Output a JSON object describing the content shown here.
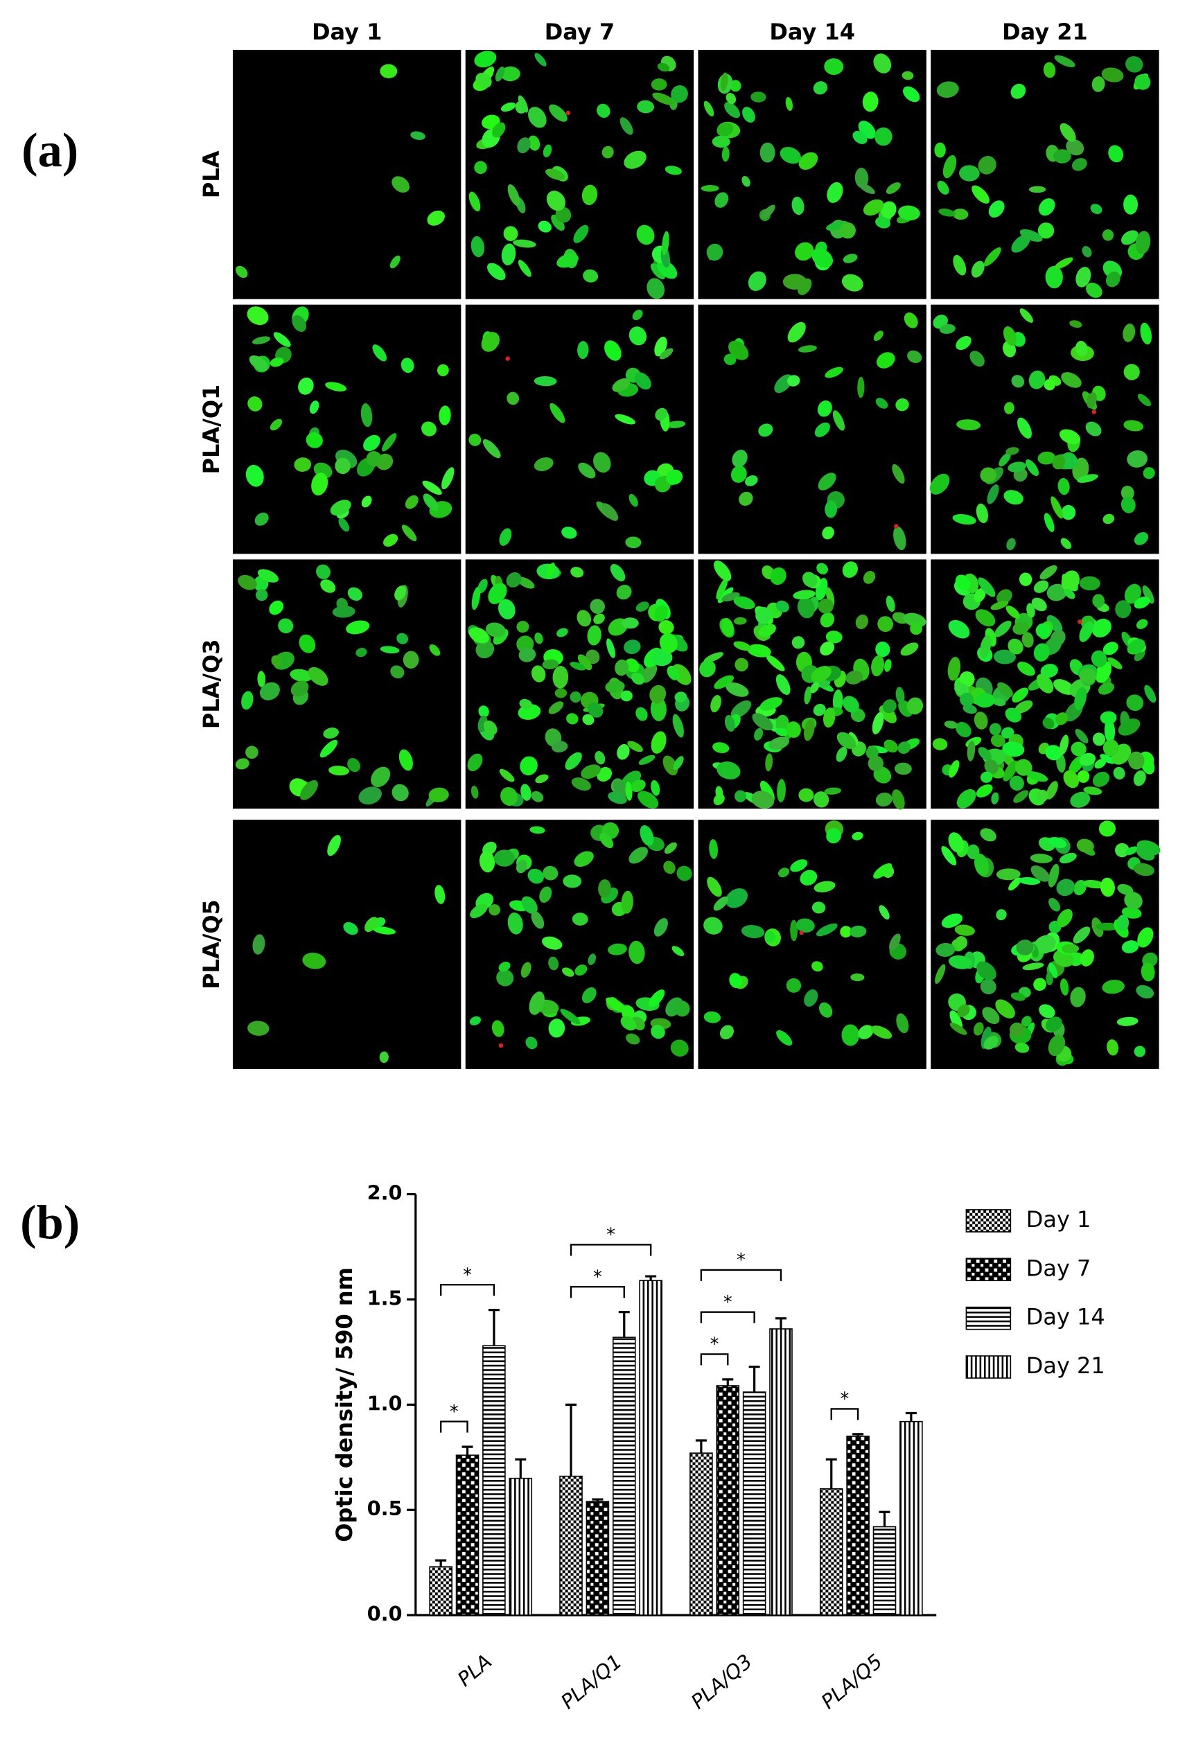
{
  "panel_a": {
    "label": "(a)",
    "columns": [
      "Day 1",
      "Day 7",
      "Day 14",
      "Day 21"
    ],
    "rows": [
      "PLA",
      "PLA/Q1",
      "PLA/Q3",
      "PLA/Q5"
    ]
  },
  "panel_b": {
    "label": "(b)"
  },
  "chart_data": {
    "type": "bar",
    "ylabel": "Optic density/ 590 nm",
    "categories": [
      "PLA",
      "PLA/Q1",
      "PLA/Q3",
      "PLA/Q5"
    ],
    "series": [
      {
        "name": "Day 1",
        "color": "#000000",
        "pattern": "checker-small",
        "values": [
          0.23,
          0.66,
          0.77,
          0.6
        ],
        "errors": [
          0.03,
          0.34,
          0.06,
          0.14
        ]
      },
      {
        "name": "Day 7",
        "color": "#000000",
        "pattern": "checker-large",
        "values": [
          0.76,
          0.54,
          1.09,
          0.85
        ],
        "errors": [
          0.04,
          0.01,
          0.03,
          0.01
        ]
      },
      {
        "name": "Day 14",
        "color": "#000000",
        "pattern": "horizontal",
        "values": [
          1.28,
          1.32,
          1.06,
          0.42
        ],
        "errors": [
          0.17,
          0.12,
          0.12,
          0.07
        ]
      },
      {
        "name": "Day 21",
        "color": "#000000",
        "pattern": "vertical",
        "values": [
          0.65,
          1.59,
          1.36,
          0.92
        ],
        "errors": [
          0.09,
          0.02,
          0.05,
          0.04
        ]
      }
    ],
    "ylim": [
      0,
      2
    ],
    "yticks": [
      {
        "value": 0,
        "label": "0.0"
      },
      0.5,
      {
        "value": 1,
        "label": "1.0"
      },
      1.5,
      {
        "value": 2,
        "label": "2.0"
      }
    ],
    "significance": [
      {
        "category": 0,
        "from": 0,
        "to": 1,
        "label": "*"
      },
      {
        "category": 0,
        "from": 0,
        "to": 2,
        "label": "*"
      },
      {
        "category": 1,
        "from": 0,
        "to": 2,
        "label": "*"
      },
      {
        "category": 1,
        "from": 0,
        "to": 3,
        "label": "*"
      },
      {
        "category": 2,
        "from": 0,
        "to": 1,
        "label": "*"
      },
      {
        "category": 2,
        "from": 0,
        "to": 2,
        "label": "*"
      },
      {
        "category": 2,
        "from": 0,
        "to": 3,
        "label": "*"
      },
      {
        "category": 3,
        "from": 0,
        "to": 1,
        "label": "*"
      }
    ],
    "legend": "right"
  }
}
